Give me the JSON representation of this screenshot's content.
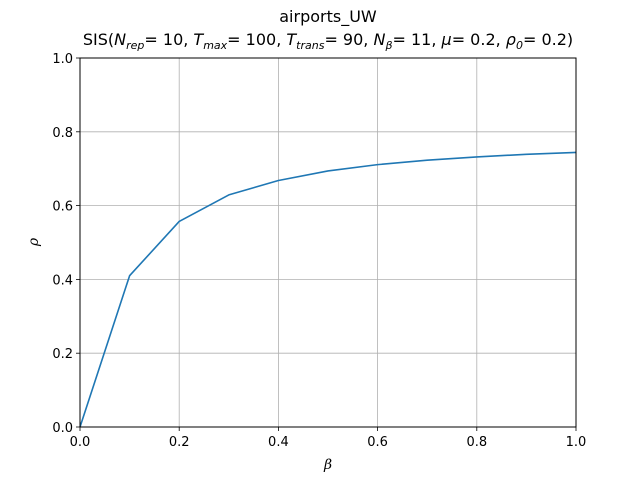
{
  "chart_data": {
    "type": "line",
    "title": "airports_UW",
    "subtitle": {
      "prefix": "SIS(",
      "params": [
        {
          "symbol": "N",
          "sub": "rep",
          "value": "10"
        },
        {
          "symbol": "T",
          "sub": "max",
          "value": "100"
        },
        {
          "symbol": "T",
          "sub": "trans",
          "value": "90"
        },
        {
          "symbol": "N",
          "sub": "β",
          "value": "11"
        },
        {
          "symbol": "μ",
          "sub": "",
          "value": "0.2"
        },
        {
          "symbol": "ρ",
          "sub": "0",
          "value": "0.2"
        }
      ],
      "suffix": ")"
    },
    "xlabel": "β",
    "ylabel": "ρ",
    "xlim": [
      0.0,
      1.0
    ],
    "ylim": [
      0.0,
      1.0
    ],
    "xticks": [
      "0.0",
      "0.2",
      "0.4",
      "0.6",
      "0.8",
      "1.0"
    ],
    "yticks": [
      "0.0",
      "0.2",
      "0.4",
      "0.6",
      "0.8",
      "1.0"
    ],
    "grid": true,
    "series": [
      {
        "color": "#1f77b4",
        "x": [
          0.0,
          0.1,
          0.2,
          0.3,
          0.4,
          0.5,
          0.6,
          0.7,
          0.8,
          0.9,
          1.0
        ],
        "y": [
          0.0,
          0.41,
          0.557,
          0.629,
          0.668,
          0.694,
          0.711,
          0.723,
          0.732,
          0.739,
          0.744
        ]
      }
    ]
  }
}
